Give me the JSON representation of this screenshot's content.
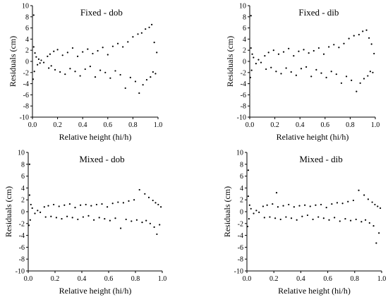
{
  "chart_data": [
    {
      "type": "scatter",
      "title": "Fixed - dob",
      "xlabel": "Relative height (hi/h)",
      "ylabel": "Residuals (cm)",
      "xlim": [
        0,
        1
      ],
      "ylim": [
        -10,
        10
      ],
      "xticks": [
        "0.0",
        "0.2",
        "0.4",
        "0.6",
        "0.8",
        "1.0"
      ],
      "yticks": [
        "-10",
        "-8",
        "-6",
        "-4",
        "-2",
        "0",
        "2",
        "4",
        "6",
        "8",
        "10"
      ],
      "grid": false,
      "points": [
        [
          0.01,
          8.3
        ],
        [
          0.005,
          -3.2
        ],
        [
          0.01,
          2.6
        ],
        [
          0.02,
          1.5
        ],
        [
          0.015,
          -1.8
        ],
        [
          0.03,
          0.8
        ],
        [
          0.04,
          -0.6
        ],
        [
          0.05,
          0.4
        ],
        [
          0.06,
          -0.3
        ],
        [
          0.07,
          0.2
        ],
        [
          0.09,
          -0.2
        ],
        [
          0.12,
          0.9
        ],
        [
          0.13,
          -1.2
        ],
        [
          0.14,
          1.3
        ],
        [
          0.15,
          -0.8
        ],
        [
          0.17,
          1.8
        ],
        [
          0.18,
          -1.5
        ],
        [
          0.2,
          2.1
        ],
        [
          0.22,
          -1.9
        ],
        [
          0.24,
          1.1
        ],
        [
          0.26,
          -2.3
        ],
        [
          0.28,
          1.6
        ],
        [
          0.3,
          -1.3
        ],
        [
          0.32,
          2.4
        ],
        [
          0.34,
          -1.8
        ],
        [
          0.36,
          0.9
        ],
        [
          0.38,
          -2.6
        ],
        [
          0.4,
          1.7
        ],
        [
          0.42,
          -1.4
        ],
        [
          0.44,
          2.2
        ],
        [
          0.46,
          -0.9
        ],
        [
          0.48,
          1.4
        ],
        [
          0.5,
          -2.8
        ],
        [
          0.52,
          1.9
        ],
        [
          0.54,
          -1.6
        ],
        [
          0.56,
          2.5
        ],
        [
          0.58,
          -2.0
        ],
        [
          0.6,
          1.2
        ],
        [
          0.62,
          -3.0
        ],
        [
          0.64,
          2.7
        ],
        [
          0.66,
          -1.7
        ],
        [
          0.68,
          3.2
        ],
        [
          0.7,
          -2.4
        ],
        [
          0.72,
          2.6
        ],
        [
          0.74,
          -4.8
        ],
        [
          0.76,
          3.5
        ],
        [
          0.78,
          -2.9
        ],
        [
          0.8,
          4.4
        ],
        [
          0.82,
          -3.6
        ],
        [
          0.84,
          4.9
        ],
        [
          0.85,
          -5.7
        ],
        [
          0.87,
          5.1
        ],
        [
          0.88,
          -4.2
        ],
        [
          0.9,
          5.8
        ],
        [
          0.91,
          -3.3
        ],
        [
          0.93,
          6.1
        ],
        [
          0.94,
          -2.8
        ],
        [
          0.95,
          6.6
        ],
        [
          0.96,
          -1.9
        ],
        [
          0.97,
          3.4
        ],
        [
          0.98,
          -2.2
        ],
        [
          0.99,
          1.6
        ]
      ]
    },
    {
      "type": "scatter",
      "title": "Fixed - dib",
      "xlabel": "Relative height (hi/h)",
      "ylabel": "Residuals (cm)",
      "xlim": [
        0,
        1
      ],
      "ylim": [
        -10,
        10
      ],
      "xticks": [
        "0.0",
        "0.2",
        "0.4",
        "0.6",
        "0.8",
        "1.0"
      ],
      "yticks": [
        "-10",
        "-8",
        "-6",
        "-4",
        "-2",
        "0",
        "2",
        "4",
        "6",
        "8",
        "10"
      ],
      "grid": false,
      "points": [
        [
          0.01,
          8.2
        ],
        [
          0.005,
          -2.9
        ],
        [
          0.01,
          2.4
        ],
        [
          0.02,
          1.3
        ],
        [
          0.015,
          -1.6
        ],
        [
          0.03,
          0.7
        ],
        [
          0.05,
          -0.4
        ],
        [
          0.07,
          0.3
        ],
        [
          0.09,
          -0.2
        ],
        [
          0.12,
          1.0
        ],
        [
          0.13,
          -1.4
        ],
        [
          0.15,
          1.6
        ],
        [
          0.17,
          -1.1
        ],
        [
          0.19,
          2.0
        ],
        [
          0.21,
          -1.8
        ],
        [
          0.23,
          1.3
        ],
        [
          0.25,
          -2.2
        ],
        [
          0.27,
          1.7
        ],
        [
          0.29,
          -1.2
        ],
        [
          0.31,
          2.3
        ],
        [
          0.33,
          -1.9
        ],
        [
          0.35,
          1.0
        ],
        [
          0.37,
          -2.5
        ],
        [
          0.39,
          1.8
        ],
        [
          0.41,
          -1.3
        ],
        [
          0.43,
          2.1
        ],
        [
          0.45,
          -1.0
        ],
        [
          0.47,
          1.5
        ],
        [
          0.49,
          -2.7
        ],
        [
          0.51,
          1.9
        ],
        [
          0.53,
          -1.5
        ],
        [
          0.55,
          2.4
        ],
        [
          0.57,
          -2.1
        ],
        [
          0.59,
          1.3
        ],
        [
          0.61,
          -2.9
        ],
        [
          0.63,
          2.6
        ],
        [
          0.65,
          -1.8
        ],
        [
          0.67,
          3.0
        ],
        [
          0.69,
          -2.3
        ],
        [
          0.71,
          2.5
        ],
        [
          0.73,
          -3.9
        ],
        [
          0.75,
          3.2
        ],
        [
          0.77,
          -2.7
        ],
        [
          0.79,
          4.1
        ],
        [
          0.81,
          -3.4
        ],
        [
          0.83,
          4.6
        ],
        [
          0.85,
          -5.4
        ],
        [
          0.87,
          4.8
        ],
        [
          0.88,
          -3.9
        ],
        [
          0.9,
          5.4
        ],
        [
          0.91,
          -3.1
        ],
        [
          0.93,
          5.6
        ],
        [
          0.94,
          -2.6
        ],
        [
          0.95,
          4.2
        ],
        [
          0.96,
          -1.8
        ],
        [
          0.97,
          3.1
        ],
        [
          0.98,
          -2.0
        ],
        [
          0.99,
          1.4
        ]
      ]
    },
    {
      "type": "scatter",
      "title": "Mixed - dob",
      "xlabel": "Relative height (hi/h)",
      "ylabel": "Residuals (cm)",
      "xlim": [
        0,
        1
      ],
      "ylim": [
        -10,
        10
      ],
      "xticks": [
        "0.0",
        "0.2",
        "0.4",
        "0.6",
        "0.8",
        "1.0"
      ],
      "yticks": [
        "-10",
        "-8",
        "-6",
        "-4",
        "-2",
        "0",
        "2",
        "4",
        "6",
        "8",
        "10"
      ],
      "grid": false,
      "points": [
        [
          0.01,
          8.0
        ],
        [
          0.005,
          -2.3
        ],
        [
          0.01,
          2.8
        ],
        [
          0.02,
          1.2
        ],
        [
          0.015,
          -1.4
        ],
        [
          0.03,
          0.6
        ],
        [
          0.05,
          -0.3
        ],
        [
          0.07,
          0.2
        ],
        [
          0.09,
          -0.1
        ],
        [
          0.12,
          0.8
        ],
        [
          0.13,
          -0.9
        ],
        [
          0.15,
          1.0
        ],
        [
          0.17,
          -0.8
        ],
        [
          0.19,
          1.2
        ],
        [
          0.21,
          -1.0
        ],
        [
          0.23,
          0.9
        ],
        [
          0.25,
          -1.2
        ],
        [
          0.27,
          1.1
        ],
        [
          0.29,
          -0.8
        ],
        [
          0.31,
          1.3
        ],
        [
          0.33,
          -1.0
        ],
        [
          0.35,
          0.7
        ],
        [
          0.37,
          -1.3
        ],
        [
          0.39,
          1.1
        ],
        [
          0.41,
          -0.9
        ],
        [
          0.43,
          1.2
        ],
        [
          0.45,
          -0.7
        ],
        [
          0.47,
          1.0
        ],
        [
          0.49,
          -1.4
        ],
        [
          0.51,
          1.2
        ],
        [
          0.53,
          -1.0
        ],
        [
          0.55,
          1.3
        ],
        [
          0.57,
          -1.2
        ],
        [
          0.59,
          0.8
        ],
        [
          0.61,
          -1.5
        ],
        [
          0.63,
          1.4
        ],
        [
          0.65,
          -1.1
        ],
        [
          0.67,
          1.6
        ],
        [
          0.69,
          -2.8
        ],
        [
          0.71,
          1.5
        ],
        [
          0.73,
          -1.3
        ],
        [
          0.75,
          1.8
        ],
        [
          0.77,
          -1.6
        ],
        [
          0.79,
          2.0
        ],
        [
          0.81,
          -1.4
        ],
        [
          0.83,
          3.7
        ],
        [
          0.85,
          -1.8
        ],
        [
          0.87,
          3.0
        ],
        [
          0.88,
          -1.5
        ],
        [
          0.9,
          2.4
        ],
        [
          0.91,
          -2.0
        ],
        [
          0.93,
          1.9
        ],
        [
          0.94,
          -2.6
        ],
        [
          0.95,
          1.5
        ],
        [
          0.96,
          -3.8
        ],
        [
          0.97,
          1.2
        ],
        [
          0.98,
          -2.2
        ],
        [
          0.99,
          0.8
        ]
      ]
    },
    {
      "type": "scatter",
      "title": "Mixed - dib",
      "xlabel": "Relative height (hi/h)",
      "ylabel": "Residuals (cm)",
      "xlim": [
        0,
        1
      ],
      "ylim": [
        -10,
        10
      ],
      "xticks": [
        "0.0",
        "0.2",
        "0.4",
        "0.6",
        "0.8",
        "1.0"
      ],
      "yticks": [
        "-10",
        "-8",
        "-6",
        "-4",
        "-2",
        "0",
        "2",
        "4",
        "6",
        "8",
        "10"
      ],
      "grid": false,
      "points": [
        [
          0.01,
          7.0
        ],
        [
          0.005,
          -2.5
        ],
        [
          0.01,
          2.6
        ],
        [
          0.02,
          1.1
        ],
        [
          0.015,
          -1.2
        ],
        [
          0.03,
          0.5
        ],
        [
          0.05,
          -0.3
        ],
        [
          0.07,
          0.2
        ],
        [
          0.09,
          -0.1
        ],
        [
          0.12,
          0.9
        ],
        [
          0.13,
          -1.0
        ],
        [
          0.15,
          1.1
        ],
        [
          0.17,
          -0.9
        ],
        [
          0.19,
          1.3
        ],
        [
          0.21,
          -1.1
        ],
        [
          0.22,
          3.2
        ],
        [
          0.23,
          0.8
        ],
        [
          0.25,
          -1.3
        ],
        [
          0.27,
          1.0
        ],
        [
          0.29,
          -0.9
        ],
        [
          0.31,
          1.2
        ],
        [
          0.33,
          -1.1
        ],
        [
          0.35,
          0.8
        ],
        [
          0.37,
          -1.4
        ],
        [
          0.39,
          1.0
        ],
        [
          0.41,
          -0.8
        ],
        [
          0.43,
          1.1
        ],
        [
          0.45,
          -0.6
        ],
        [
          0.47,
          0.9
        ],
        [
          0.49,
          -1.3
        ],
        [
          0.51,
          1.1
        ],
        [
          0.53,
          -0.9
        ],
        [
          0.55,
          1.2
        ],
        [
          0.57,
          -1.1
        ],
        [
          0.59,
          0.7
        ],
        [
          0.61,
          -1.4
        ],
        [
          0.63,
          1.3
        ],
        [
          0.65,
          -1.0
        ],
        [
          0.67,
          1.5
        ],
        [
          0.69,
          -1.6
        ],
        [
          0.71,
          1.4
        ],
        [
          0.73,
          -1.2
        ],
        [
          0.75,
          1.7
        ],
        [
          0.77,
          -1.5
        ],
        [
          0.79,
          1.9
        ],
        [
          0.81,
          -1.3
        ],
        [
          0.83,
          3.6
        ],
        [
          0.85,
          -1.7
        ],
        [
          0.87,
          2.8
        ],
        [
          0.88,
          -1.4
        ],
        [
          0.9,
          2.1
        ],
        [
          0.91,
          -1.9
        ],
        [
          0.93,
          1.6
        ],
        [
          0.94,
          -2.4
        ],
        [
          0.95,
          1.2
        ],
        [
          0.96,
          -5.3
        ],
        [
          0.97,
          0.9
        ],
        [
          0.98,
          -3.6
        ],
        [
          0.99,
          0.6
        ]
      ]
    }
  ]
}
